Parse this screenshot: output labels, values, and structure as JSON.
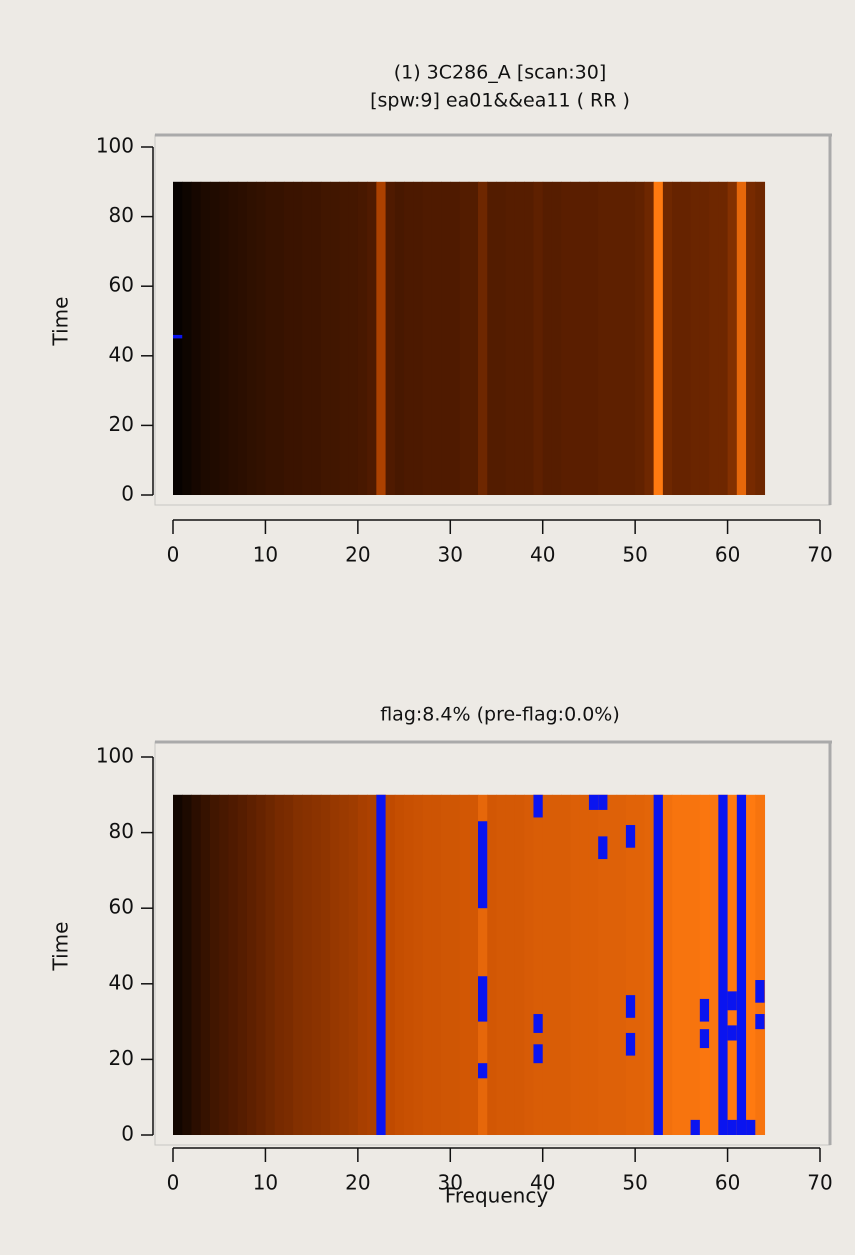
{
  "chart_data": [
    {
      "type": "heatmap",
      "title": "(1) 3C286_A  [scan:30]",
      "subtitle": "[spw:9] ea01&&ea11  ( RR )",
      "y_label": "Time",
      "xlim": [
        0,
        70
      ],
      "xticks": [
        0,
        10,
        20,
        30,
        40,
        50,
        60,
        70
      ],
      "ylim": [
        0,
        100
      ],
      "yticks": [
        0,
        20,
        40,
        60,
        80,
        100
      ],
      "time_span": [
        0,
        90
      ],
      "colormap": [
        "#000000",
        "#5a1e00",
        "#c04a00",
        "#ff7a10",
        "#ffc060"
      ],
      "flag_color": "#0a14f0",
      "x": [
        0,
        1,
        2,
        3,
        4,
        5,
        6,
        7,
        8,
        9,
        10,
        11,
        12,
        13,
        14,
        15,
        16,
        17,
        18,
        19,
        20,
        21,
        22,
        23,
        24,
        25,
        26,
        27,
        28,
        29,
        30,
        31,
        32,
        33,
        34,
        35,
        36,
        37,
        38,
        39,
        40,
        41,
        42,
        43,
        44,
        45,
        46,
        47,
        48,
        49,
        50,
        51,
        52,
        53,
        54,
        55,
        56,
        57,
        58,
        59,
        60,
        61,
        62,
        63
      ],
      "values": [
        0.02,
        0.04,
        0.06,
        0.08,
        0.09,
        0.1,
        0.11,
        0.12,
        0.13,
        0.14,
        0.15,
        0.15,
        0.16,
        0.16,
        0.17,
        0.17,
        0.18,
        0.18,
        0.19,
        0.19,
        0.2,
        0.22,
        0.45,
        0.22,
        0.2,
        0.21,
        0.21,
        0.22,
        0.22,
        0.22,
        0.22,
        0.23,
        0.23,
        0.3,
        0.23,
        0.23,
        0.24,
        0.24,
        0.24,
        0.26,
        0.24,
        0.24,
        0.25,
        0.25,
        0.25,
        0.25,
        0.26,
        0.26,
        0.26,
        0.26,
        0.27,
        0.3,
        0.75,
        0.3,
        0.28,
        0.28,
        0.29,
        0.29,
        0.3,
        0.3,
        0.35,
        0.65,
        0.32,
        0.3
      ],
      "flags": [
        {
          "x": 0,
          "t": [
            45,
            46
          ]
        }
      ]
    },
    {
      "type": "heatmap",
      "title": "flag:8.4% (pre-flag:0.0%)",
      "x_label": "Frequency",
      "y_label": "Time",
      "xlim": [
        0,
        70
      ],
      "xticks": [
        0,
        10,
        20,
        30,
        40,
        50,
        60,
        70
      ],
      "ylim": [
        0,
        100
      ],
      "yticks": [
        0,
        20,
        40,
        60,
        80,
        100
      ],
      "time_span": [
        0,
        90
      ],
      "colormap": [
        "#000000",
        "#5a1e00",
        "#c04a00",
        "#ff7a10",
        "#ffc060"
      ],
      "flag_color": "#0a14f0",
      "x": [
        0,
        1,
        2,
        3,
        4,
        5,
        6,
        7,
        8,
        9,
        10,
        11,
        12,
        13,
        14,
        15,
        16,
        17,
        18,
        19,
        20,
        21,
        22,
        23,
        24,
        25,
        26,
        27,
        28,
        29,
        30,
        31,
        32,
        33,
        34,
        35,
        36,
        37,
        38,
        39,
        40,
        41,
        42,
        43,
        44,
        45,
        46,
        47,
        48,
        49,
        50,
        51,
        52,
        53,
        54,
        55,
        56,
        57,
        58,
        59,
        60,
        61,
        62,
        63
      ],
      "values": [
        0.05,
        0.08,
        0.12,
        0.15,
        0.18,
        0.2,
        0.22,
        0.24,
        0.26,
        0.28,
        0.3,
        0.32,
        0.33,
        0.35,
        0.36,
        0.37,
        0.38,
        0.4,
        0.41,
        0.42,
        0.44,
        0.45,
        0.46,
        0.5,
        0.52,
        0.53,
        0.54,
        0.55,
        0.55,
        0.56,
        0.56,
        0.57,
        0.57,
        0.65,
        0.57,
        0.58,
        0.58,
        0.58,
        0.59,
        0.6,
        0.6,
        0.6,
        0.6,
        0.61,
        0.61,
        0.61,
        0.62,
        0.62,
        0.62,
        0.63,
        0.63,
        0.64,
        0.66,
        0.7,
        0.72,
        0.72,
        0.72,
        0.73,
        0.73,
        0.74,
        0.75,
        0.78,
        0.75,
        0.72
      ],
      "flags": [
        {
          "x": 22,
          "t": [
            0,
            90
          ]
        },
        {
          "x": 33,
          "t": [
            15,
            19
          ]
        },
        {
          "x": 33,
          "t": [
            30,
            42
          ]
        },
        {
          "x": 33,
          "t": [
            60,
            83
          ]
        },
        {
          "x": 39,
          "t": [
            19,
            24
          ]
        },
        {
          "x": 39,
          "t": [
            27,
            32
          ]
        },
        {
          "x": 39,
          "t": [
            84,
            90
          ]
        },
        {
          "x": 45,
          "t": [
            86,
            90
          ]
        },
        {
          "x": 46,
          "t": [
            86,
            90
          ]
        },
        {
          "x": 46,
          "t": [
            73,
            79
          ]
        },
        {
          "x": 49,
          "t": [
            21,
            27
          ]
        },
        {
          "x": 49,
          "t": [
            31,
            37
          ]
        },
        {
          "x": 49,
          "t": [
            76,
            82
          ]
        },
        {
          "x": 52,
          "t": [
            0,
            90
          ]
        },
        {
          "x": 56,
          "t": [
            0,
            4
          ]
        },
        {
          "x": 57,
          "t": [
            23,
            28
          ]
        },
        {
          "x": 57,
          "t": [
            30,
            36
          ]
        },
        {
          "x": 59,
          "t": [
            0,
            90
          ]
        },
        {
          "x": 60,
          "t": [
            0,
            4
          ]
        },
        {
          "x": 60,
          "t": [
            25,
            29
          ]
        },
        {
          "x": 60,
          "t": [
            33,
            38
          ]
        },
        {
          "x": 61,
          "t": [
            0,
            90
          ]
        },
        {
          "x": 62,
          "t": [
            0,
            4
          ]
        },
        {
          "x": 63,
          "t": [
            28,
            32
          ]
        },
        {
          "x": 63,
          "t": [
            35,
            41
          ]
        }
      ]
    }
  ]
}
